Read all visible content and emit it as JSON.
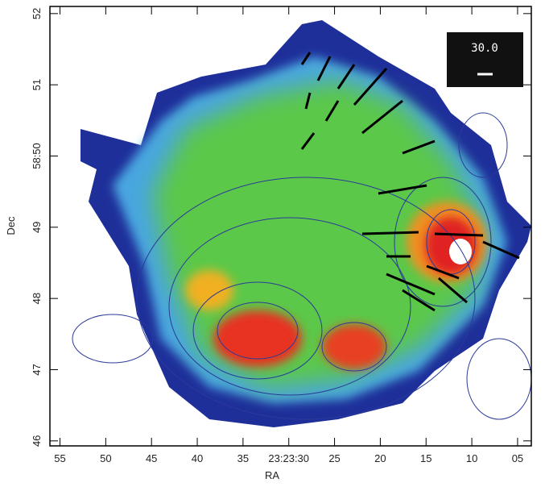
{
  "chart_data": {
    "type": "image",
    "x_label": "RA",
    "y_label": "Dec",
    "annotation": "30.0",
    "xlim": [
      56.1,
      3.5
    ],
    "xticks": [
      55,
      50,
      45,
      40,
      35,
      {
        "value": 30,
        "label": "23:23:30"
      },
      25,
      20,
      15,
      10,
      {
        "value": 5,
        "label": "05"
      }
    ],
    "ylim": [
      45.93,
      52.1
    ],
    "yticks": [
      46,
      47,
      48,
      49,
      {
        "value": 50,
        "label": "58:50"
      },
      51,
      52
    ]
  }
}
